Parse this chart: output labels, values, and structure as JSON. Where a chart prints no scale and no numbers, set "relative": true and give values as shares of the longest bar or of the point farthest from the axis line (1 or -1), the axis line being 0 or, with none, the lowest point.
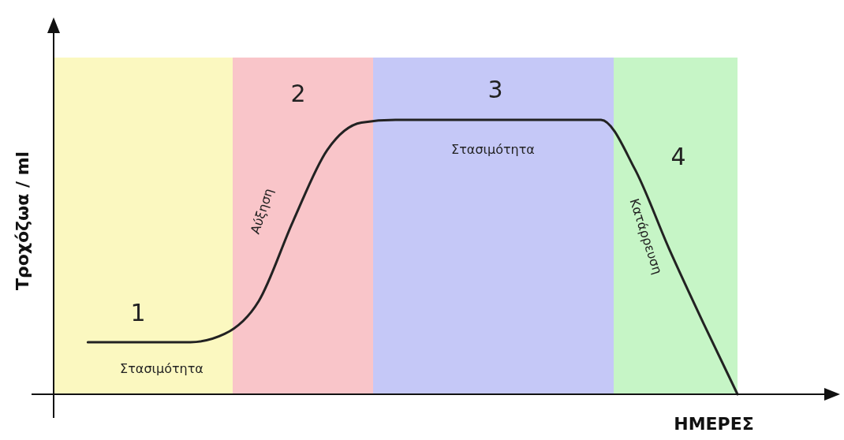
{
  "chart_data": {
    "type": "line",
    "relative": true,
    "xlabel": "ΗΜΕΡΕΣ",
    "ylabel": "Τροχόζωα / ml",
    "categories": [
      null,
      null,
      null,
      null,
      null,
      null,
      null,
      null,
      null,
      null,
      null,
      null,
      null,
      null,
      null,
      null,
      null,
      null,
      null,
      null,
      null
    ],
    "series": [
      {
        "color": "#222222",
        "values": [
          null,
          0.19,
          0.19,
          0.19,
          0.19,
          0.22,
          0.34,
          0.63,
          0.89,
          0.99,
          1,
          1,
          1,
          1,
          1,
          1,
          1,
          0.82,
          0.53,
          0.26,
          0
        ]
      }
    ],
    "annotations": [
      "1",
      "2",
      "3",
      "4",
      "Στασιμότητα",
      "Αύξηση",
      "Στασιμότητα",
      "Κατάρρευση"
    ]
  }
}
